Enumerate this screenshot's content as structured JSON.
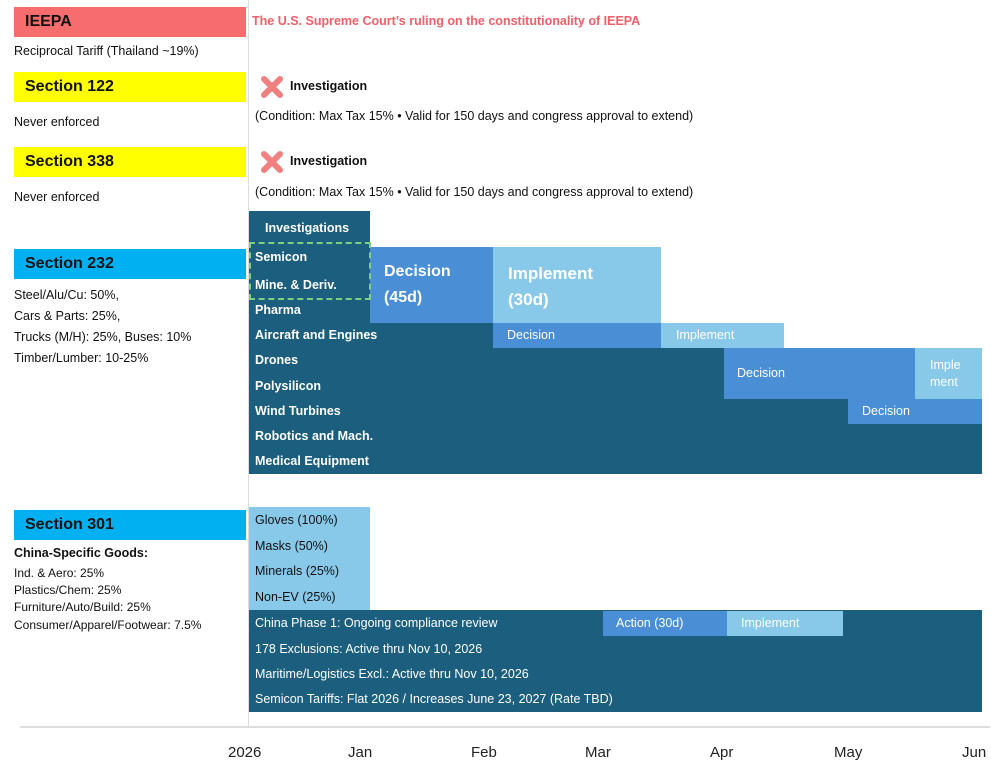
{
  "ieepa": {
    "title": "IEEPA",
    "note": "The U.S. Supreme Court’s ruling on the constitutionality of IEEPA",
    "detail": "Reciprocal Tariff (Thailand ~19%)"
  },
  "section_122": {
    "title": "Section 122",
    "status": "Investigation",
    "condition": "(Condition: Max Tax 15% • Valid for 150 days and congress approval to extend)",
    "detail": "Never enforced"
  },
  "section_338": {
    "title": "Section 338",
    "status": "Investigation",
    "condition": "(Condition: Max Tax 15% • Valid for 150 days and congress approval to extend)",
    "detail": "Never enforced"
  },
  "section_232": {
    "title": "Section 232",
    "details": [
      "Steel/Alu/Cu: 50%,",
      "Cars & Parts: 25%,",
      "Trucks (M/H): 25%, Buses: 10%",
      "Timber/Lumber: 10-25%"
    ],
    "investigations": "Investigations",
    "items": [
      "Semicon",
      "Mine. & Deriv.",
      "Pharma",
      "Aircraft and Engines",
      "Drones",
      "Polysilicon",
      "Wind Turbines",
      "Robotics and Mach.",
      "Medical Equipment"
    ],
    "phases": {
      "decision": "Decision",
      "decision_days": "(45d)",
      "implement": "Implement",
      "implement_days": "(30d)"
    },
    "aircraft": {
      "decision": "Decision",
      "implement": "Implement"
    },
    "drones": {
      "decision": "Decision",
      "implement_1": "Imple",
      "implement_2": "ment"
    },
    "wind": {
      "decision": "Decision"
    }
  },
  "section_301": {
    "title": "Section 301",
    "subtitle": "China-Specific Goods:",
    "details": [
      "Ind. & Aero: 25%",
      "Plastics/Chem: 25%",
      "Furniture/Auto/Build: 25%",
      "Consumer/Apparel/Footwear: 7.5%"
    ],
    "items": [
      "Gloves (100%)",
      "Masks (50%)",
      "Minerals (25%)",
      "Non-EV (25%)"
    ],
    "rows": [
      "China Phase 1: Ongoing compliance review",
      "178 Exclusions: Active thru Nov 10, 2026",
      "Maritime/Logistics Excl.: Active thru Nov 10, 2026",
      "Semicon Tariffs: Flat 2026 / Increases June 23, 2027 (Rate TBD)"
    ],
    "action": "Action (30d)",
    "implement": "Implement"
  },
  "timeline": {
    "labels": [
      "2026",
      "Jan",
      "Feb",
      "Mar",
      "Apr",
      "May",
      "Jun"
    ]
  }
}
